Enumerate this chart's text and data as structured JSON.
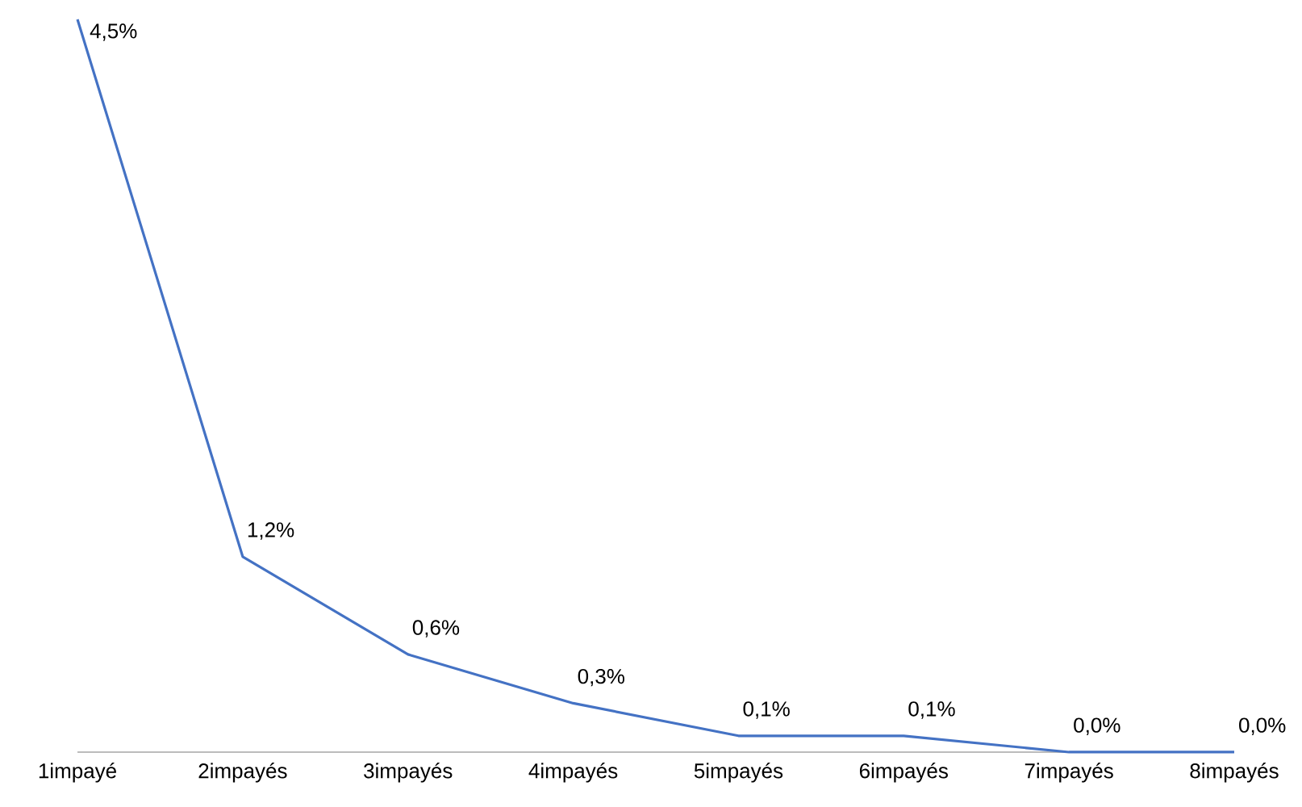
{
  "chart_data": {
    "type": "line",
    "categories": [
      "1impayé",
      "2impayés",
      "3impayés",
      "4impayés",
      "5impayés",
      "6impayés",
      "7impayés",
      "8impayés"
    ],
    "values": [
      4.5,
      1.2,
      0.6,
      0.3,
      0.1,
      0.1,
      0.0,
      0.0
    ],
    "value_labels": [
      "4,5%",
      "1,2%",
      "0,6%",
      "0,3%",
      "0,1%",
      "0,1%",
      "0,0%",
      "0,0%"
    ],
    "color": "#4472c4"
  }
}
